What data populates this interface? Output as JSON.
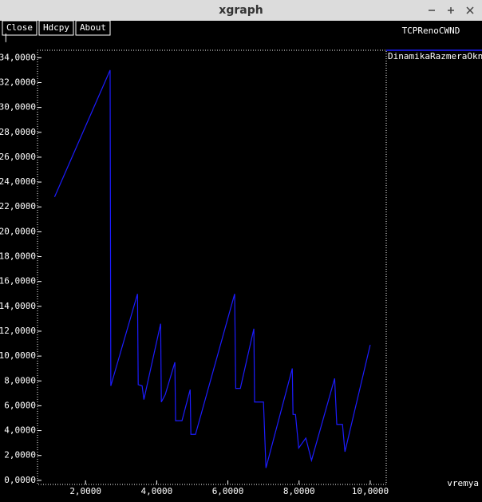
{
  "window": {
    "title": "xgraph",
    "buttons": [
      "Close",
      "Hdcpy",
      "About"
    ]
  },
  "chart_data": {
    "type": "line",
    "title": "TCPRenoCWND",
    "x_label": "vremya",
    "y_label": "|",
    "x": [
      1.13,
      2.69,
      2.71,
      3.46,
      3.48,
      3.59,
      3.64,
      4.11,
      4.13,
      4.24,
      4.51,
      4.53,
      4.71,
      4.94,
      4.96,
      5.09,
      6.19,
      6.22,
      6.35,
      6.73,
      6.75,
      7.0,
      7.07,
      7.81,
      7.83,
      7.9,
      7.99,
      8.19,
      8.35,
      9.0,
      9.06,
      9.22,
      9.29,
      10.0
    ],
    "series": [
      {
        "name": "DinamikaRazmeraOkna",
        "color": "#1c1cff",
        "values": [
          22.8,
          33.0,
          7.6,
          15.0,
          7.7,
          7.6,
          6.5,
          12.6,
          6.3,
          6.9,
          9.5,
          4.8,
          4.8,
          7.3,
          3.7,
          3.7,
          15.0,
          7.4,
          7.4,
          12.2,
          6.3,
          6.3,
          1.0,
          9.0,
          5.3,
          5.3,
          2.6,
          3.4,
          1.6,
          8.2,
          4.5,
          4.5,
          2.3,
          10.9
        ]
      }
    ],
    "xlim": [
      0.65,
      10.45
    ],
    "ylim": [
      -0.33,
      34.6
    ],
    "xticks": [
      {
        "value": 2,
        "label": "2,0000"
      },
      {
        "value": 4,
        "label": "4,0000"
      },
      {
        "value": 6,
        "label": "6,0000"
      },
      {
        "value": 8,
        "label": "8,0000"
      },
      {
        "value": 10,
        "label": "10,0000"
      }
    ],
    "yticks": [
      {
        "value": 0,
        "label": "0,0000"
      },
      {
        "value": 2,
        "label": "2,0000"
      },
      {
        "value": 4,
        "label": "4,0000"
      },
      {
        "value": 6,
        "label": "6,0000"
      },
      {
        "value": 8,
        "label": "8,0000"
      },
      {
        "value": 10,
        "label": "10,0000"
      },
      {
        "value": 12,
        "label": "12,0000"
      },
      {
        "value": 14,
        "label": "14,0000"
      },
      {
        "value": 16,
        "label": "16,0000"
      },
      {
        "value": 18,
        "label": "18,0000"
      },
      {
        "value": 20,
        "label": "20,0000"
      },
      {
        "value": 22,
        "label": "22,0000"
      },
      {
        "value": 24,
        "label": "24,0000"
      },
      {
        "value": 26,
        "label": "26,0000"
      },
      {
        "value": 28,
        "label": "28,0000"
      },
      {
        "value": 30,
        "label": "30,0000"
      },
      {
        "value": 32,
        "label": "32,0000"
      },
      {
        "value": 34,
        "label": "34,0000"
      }
    ],
    "grid": false
  }
}
